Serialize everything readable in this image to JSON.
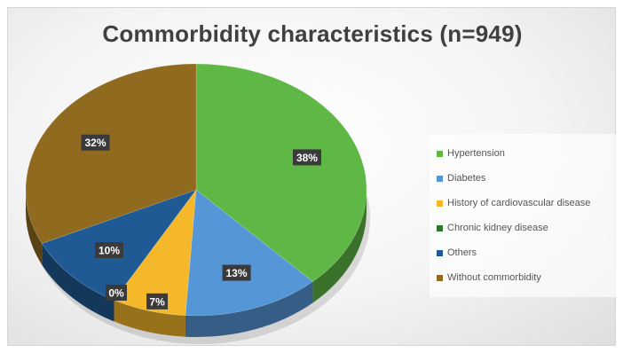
{
  "chart_data": {
    "type": "pie",
    "title": "Commorbidity characteristics (n=949)",
    "categories": [
      "Hypertension",
      "Diabetes",
      "History of cardiovascular disease",
      "Chronic kidney disease",
      "Others",
      "Without commorbidity"
    ],
    "values": [
      38,
      13,
      7,
      0,
      10,
      32
    ],
    "data_labels": [
      "38%",
      "13%",
      "7%",
      "0%",
      "10%",
      "32%"
    ],
    "colors": [
      "#5fb846",
      "#5596d6",
      "#f5b82a",
      "#2b7a2b",
      "#1f5a94",
      "#8f6a1f"
    ],
    "legend_position": "right",
    "style": "3d-pie"
  }
}
